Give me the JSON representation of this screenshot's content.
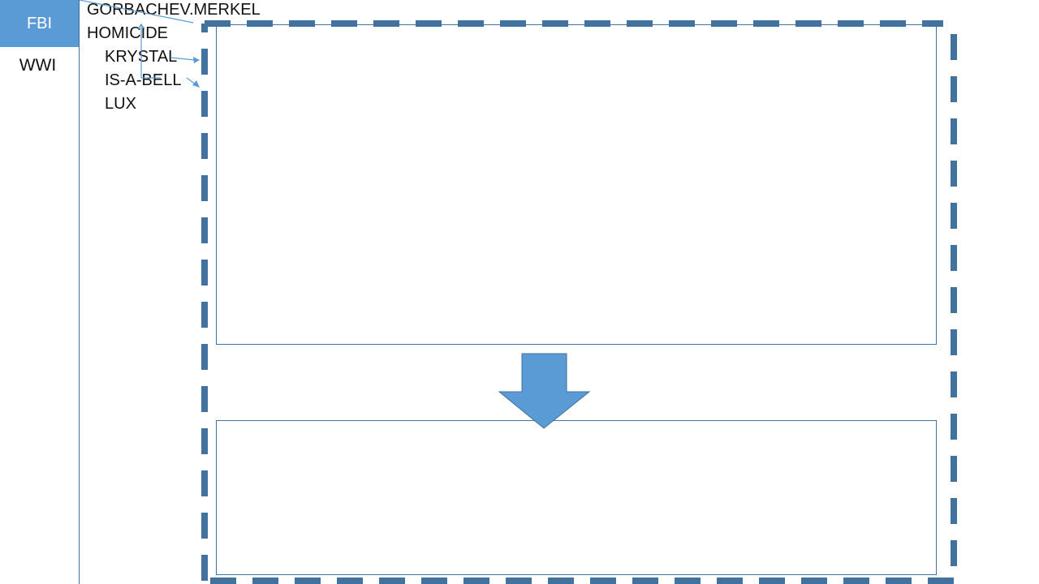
{
  "colors": {
    "accent_fill": "#5b9bd5",
    "accent_stroke": "#41719c",
    "dashed_border": "#44729e",
    "text": "#111111"
  },
  "sidebar": {
    "badge_label": "FBI",
    "item_label": "WWI"
  },
  "labels": {
    "gorbachev": "GORBACHEV.MERKEL",
    "homicide": "HOMICIDE",
    "krystal": "KRYSTAL",
    "isabell": "IS-A-BELL",
    "lux": "LUX"
  },
  "shapes": {
    "arrow_direction": "down",
    "outer_frame_style": "dashed",
    "inner_box_count": 2
  }
}
